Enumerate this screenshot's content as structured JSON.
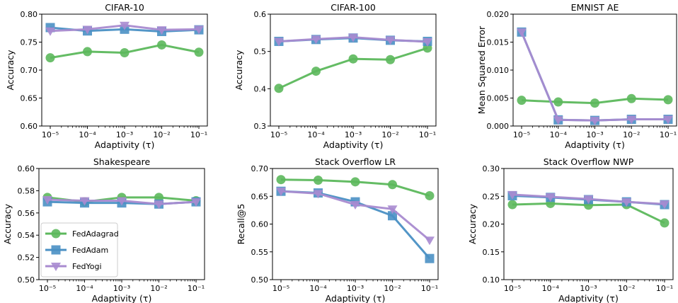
{
  "chart_data": [
    {
      "type": "line",
      "title": "CIFAR-10",
      "xlabel": "Adaptivity (τ)",
      "ylabel": "Accuracy",
      "x_ticks": [
        "10⁻⁵",
        "10⁻⁴",
        "10⁻³",
        "10⁻²",
        "10⁻¹"
      ],
      "x": [
        1e-05,
        0.0001,
        0.001,
        0.01,
        0.1
      ],
      "x_scale": "log",
      "ylim": [
        0.6,
        0.8
      ],
      "y_ticks": [
        "0.60",
        "0.65",
        "0.70",
        "0.75",
        "0.80"
      ],
      "series": [
        {
          "name": "FedAdagrad",
          "values": [
            0.722,
            0.733,
            0.731,
            0.745,
            0.732
          ]
        },
        {
          "name": "FedAdam",
          "values": [
            0.776,
            0.77,
            0.773,
            0.769,
            0.772
          ]
        },
        {
          "name": "FedYogi",
          "values": [
            0.77,
            0.773,
            0.78,
            0.772,
            0.773
          ]
        }
      ]
    },
    {
      "type": "line",
      "title": "CIFAR-100",
      "xlabel": "Adaptivity (τ)",
      "ylabel": "Accuracy",
      "x_ticks": [
        "10⁻⁵",
        "10⁻⁴",
        "10⁻³",
        "10⁻²",
        "10⁻¹"
      ],
      "x": [
        1e-05,
        0.0001,
        0.001,
        0.01,
        0.1
      ],
      "x_scale": "log",
      "ylim": [
        0.3,
        0.6
      ],
      "y_ticks": [
        "0.3",
        "0.4",
        "0.5",
        "0.6"
      ],
      "series": [
        {
          "name": "FedAdagrad",
          "values": [
            0.401,
            0.447,
            0.48,
            0.478,
            0.509
          ]
        },
        {
          "name": "FedAdam",
          "values": [
            0.527,
            0.532,
            0.536,
            0.53,
            0.527
          ]
        },
        {
          "name": "FedYogi",
          "values": [
            0.527,
            0.533,
            0.538,
            0.531,
            0.526
          ]
        }
      ]
    },
    {
      "type": "line",
      "title": "EMNIST AE",
      "xlabel": "Adaptivity (τ)",
      "ylabel": "Mean Squared Error",
      "x_ticks": [
        "10⁻⁵",
        "10⁻⁴",
        "10⁻³",
        "10⁻²",
        "10⁻¹"
      ],
      "x": [
        1e-05,
        0.0001,
        0.001,
        0.01,
        0.1
      ],
      "x_scale": "log",
      "ylim": [
        0.0,
        0.02
      ],
      "y_ticks": [
        "0.000",
        "0.005",
        "0.010",
        "0.015",
        "0.020"
      ],
      "series": [
        {
          "name": "FedAdagrad",
          "values": [
            0.0046,
            0.0043,
            0.0041,
            0.0049,
            0.0047
          ]
        },
        {
          "name": "FedAdam",
          "values": [
            0.0168,
            0.0011,
            0.001,
            0.0012,
            0.0012
          ]
        },
        {
          "name": "FedYogi",
          "values": [
            0.0168,
            0.0011,
            0.001,
            0.0012,
            0.0012
          ]
        }
      ]
    },
    {
      "type": "line",
      "title": "Shakespeare",
      "xlabel": "Adaptivity (τ)",
      "ylabel": "Accuracy",
      "x_ticks": [
        "10⁻⁵",
        "10⁻⁴",
        "10⁻³",
        "10⁻²",
        "10⁻¹"
      ],
      "x": [
        1e-05,
        0.0001,
        0.001,
        0.01,
        0.1
      ],
      "x_scale": "log",
      "ylim": [
        0.5,
        0.6
      ],
      "y_ticks": [
        "0.50",
        "0.52",
        "0.54",
        "0.56",
        "0.58",
        "0.60"
      ],
      "series": [
        {
          "name": "FedAdagrad",
          "values": [
            0.574,
            0.57,
            0.574,
            0.574,
            0.571
          ]
        },
        {
          "name": "FedAdam",
          "values": [
            0.57,
            0.569,
            0.569,
            0.568,
            0.57
          ]
        },
        {
          "name": "FedYogi",
          "values": [
            0.572,
            0.571,
            0.571,
            0.568,
            0.57
          ]
        }
      ],
      "legend": {
        "placement": "lower left",
        "entries": [
          "FedAdagrad",
          "FedAdam",
          "FedYogi"
        ]
      }
    },
    {
      "type": "line",
      "title": "Stack Overflow LR",
      "xlabel": "Adaptivity (τ)",
      "ylabel": "Recall@5",
      "x_ticks": [
        "10⁻⁵",
        "10⁻⁴",
        "10⁻³",
        "10⁻²",
        "10⁻¹"
      ],
      "x": [
        1e-05,
        0.0001,
        0.001,
        0.01,
        0.1
      ],
      "x_scale": "log",
      "ylim": [
        0.5,
        0.7
      ],
      "y_ticks": [
        "0.50",
        "0.55",
        "0.60",
        "0.65",
        "0.70"
      ],
      "series": [
        {
          "name": "FedAdagrad",
          "values": [
            0.68,
            0.679,
            0.676,
            0.671,
            0.651
          ]
        },
        {
          "name": "FedAdam",
          "values": [
            0.659,
            0.656,
            0.64,
            0.615,
            0.538
          ]
        },
        {
          "name": "FedYogi",
          "values": [
            0.659,
            0.655,
            0.635,
            0.627,
            0.571
          ]
        }
      ]
    },
    {
      "type": "line",
      "title": "Stack Overflow NWP",
      "xlabel": "Adaptivity (τ)",
      "ylabel": "Accuracy",
      "x_ticks": [
        "10⁻⁵",
        "10⁻⁴",
        "10⁻³",
        "10⁻²",
        "10⁻¹"
      ],
      "x": [
        1e-05,
        0.0001,
        0.001,
        0.01,
        0.1
      ],
      "x_scale": "log",
      "ylim": [
        0.1,
        0.3
      ],
      "y_ticks": [
        "0.10",
        "0.15",
        "0.20",
        "0.25",
        "0.30"
      ],
      "series": [
        {
          "name": "FedAdagrad",
          "values": [
            0.235,
            0.237,
            0.234,
            0.235,
            0.202
          ]
        },
        {
          "name": "FedAdam",
          "values": [
            0.251,
            0.248,
            0.244,
            0.24,
            0.235
          ]
        },
        {
          "name": "FedYogi",
          "values": [
            0.253,
            0.249,
            0.245,
            0.24,
            0.236
          ]
        }
      ]
    }
  ],
  "colors": {
    "FedAdagrad": "#5cb85c",
    "FedAdam": "#4a90c4",
    "FedYogi": "#a98bd0"
  },
  "markers": {
    "FedAdagrad": "circle",
    "FedAdam": "square",
    "FedYogi": "triangle-down"
  }
}
